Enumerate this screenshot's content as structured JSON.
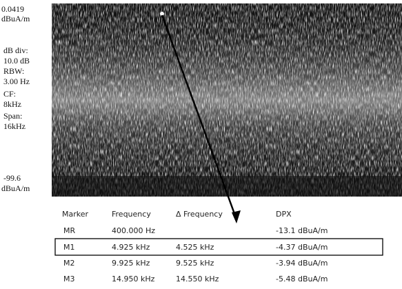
{
  "readout": {
    "ref_level": "0.0419",
    "ref_unit": "dBuA/m",
    "scale_label": "dB div:",
    "scale_value": "10.0 dB",
    "rbw_label": "RBW:",
    "rbw_value": "3.00 Hz",
    "cf_label": "CF:",
    "cf_value": "8kHz",
    "span_label": "Span:",
    "span_value": "16kHz",
    "bottom_level": "-99.6",
    "bottom_unit": "dBuA/m"
  },
  "table": {
    "headers": [
      "Marker",
      "Frequency",
      "Δ Frequency",
      "DPX"
    ],
    "rows": [
      {
        "marker": "MR",
        "frequency": "400.000 Hz",
        "dpx": "-13.1 dBuA/m"
      },
      {
        "marker": "M1",
        "frequency": "4.925 kHz",
        "delta_frequency": "4.525 kHz",
        "dpx": "-4.37 dBuA/m"
      },
      {
        "marker": "M2",
        "frequency": "9.925 kHz",
        "delta_frequency": "9.525 kHz",
        "dpx": "-3.94 dBuA/m"
      },
      {
        "marker": "M3",
        "frequency": "14.950 kHz",
        "delta_frequency": "14.550 kHz",
        "dpx": "-5.48 dBuA/m"
      }
    ]
  }
}
